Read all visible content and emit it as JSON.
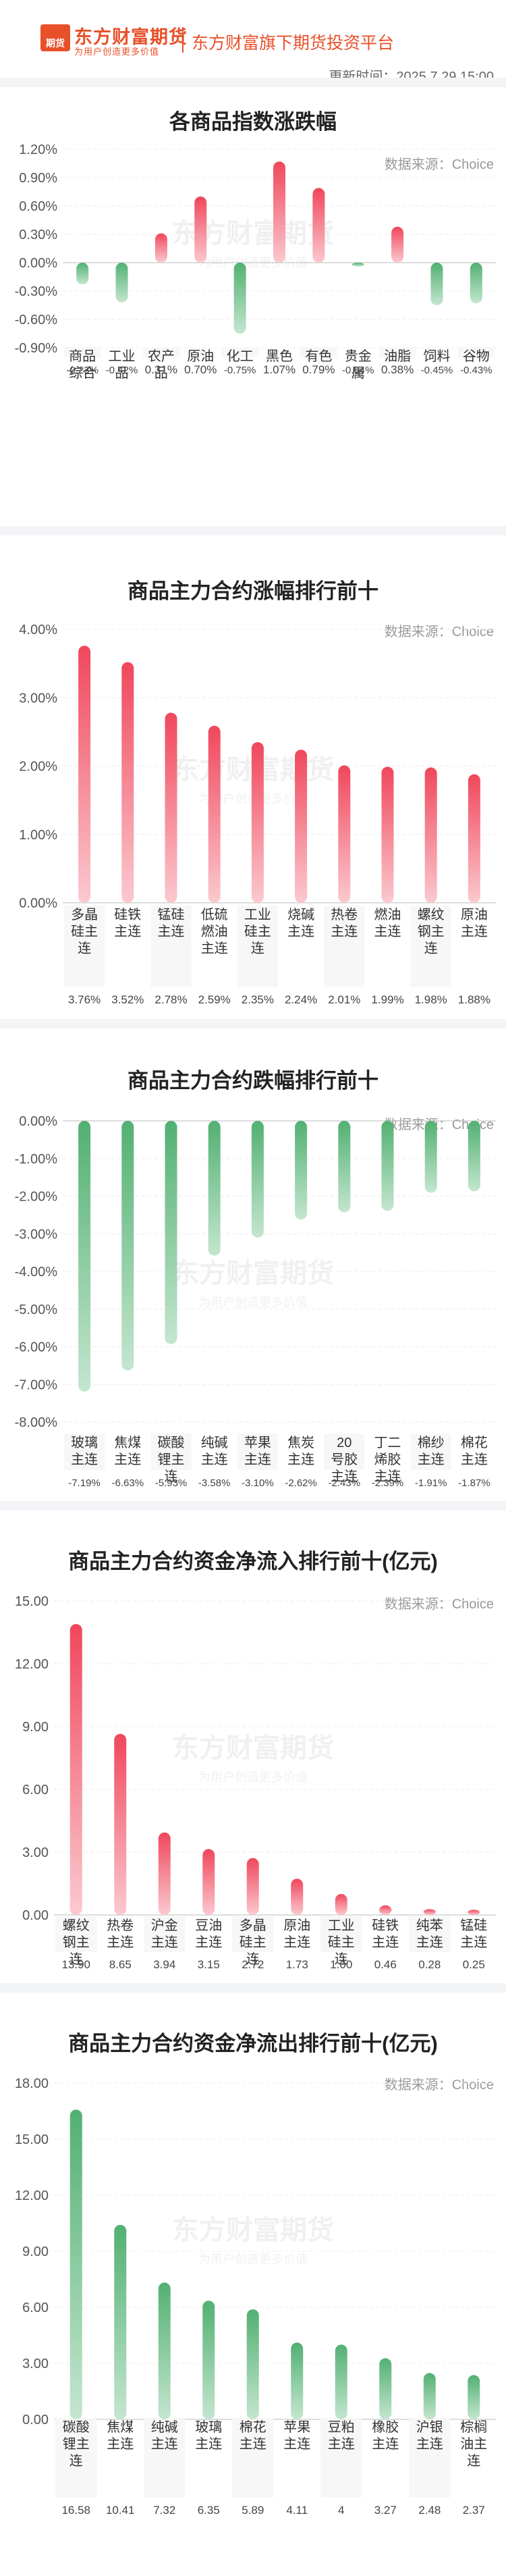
{
  "header": {
    "logo_badge": "期货",
    "logo_name": "东方财富期货",
    "logo_slogan": "为用户创造更多价值",
    "subtitle": "东方财富旗下期货投资平台",
    "update_time": "更新时间：2025.7.29 15:00"
  },
  "watermark": {
    "name": "东方财富期货",
    "slogan": "为用户创造更多价值"
  },
  "colors": {
    "up": "#f0475c",
    "down": "#52b072",
    "up_light": "#fbc9cf",
    "down_light": "#c4e6cf"
  },
  "chart_data": [
    {
      "type": "bar",
      "title": "各商品指数涨跌幅",
      "source": "数据来源：Choice",
      "categories": [
        "商品综合",
        "工业品",
        "农产品",
        "原油",
        "化工",
        "黑色",
        "有色",
        "贵金属",
        "油脂",
        "饲料",
        "谷物"
      ],
      "values": [
        -0.23,
        -0.42,
        0.31,
        0.7,
        -0.75,
        1.07,
        0.79,
        -0.04,
        0.38,
        -0.45,
        -0.43
      ],
      "value_labels": [
        "-0.23%",
        "-0.42%",
        "0.31%",
        "0.70%",
        "-0.75%",
        "1.07%",
        "0.79%",
        "-0.04%",
        "0.38%",
        "-0.45%",
        "-0.43%"
      ],
      "yticks": [
        "1.20%",
        "0.90%",
        "0.60%",
        "0.30%",
        "0.00%",
        "-0.30%",
        "-0.60%",
        "-0.90%"
      ],
      "ylim": [
        -0.9,
        1.2
      ],
      "grid": true
    },
    {
      "type": "bar",
      "title": "商品主力合约涨幅排行前十",
      "source": "数据来源：Choice",
      "categories": [
        "多晶硅主连",
        "硅铁主连",
        "锰硅主连",
        "低硫燃油主连",
        "工业硅主连",
        "烧碱主连",
        "热卷主连",
        "燃油主连",
        "螺纹钢主连",
        "原油主连"
      ],
      "values": [
        3.76,
        3.52,
        2.78,
        2.59,
        2.35,
        2.24,
        2.01,
        1.99,
        1.98,
        1.88
      ],
      "value_labels": [
        "3.76%",
        "3.52%",
        "2.78%",
        "2.59%",
        "2.35%",
        "2.24%",
        "2.01%",
        "1.99%",
        "1.98%",
        "1.88%"
      ],
      "yticks": [
        "4.00%",
        "3.00%",
        "2.00%",
        "1.00%",
        "0.00%"
      ],
      "ylim": [
        0,
        4
      ],
      "grid": true
    },
    {
      "type": "bar",
      "title": "商品主力合约跌幅排行前十",
      "source": "数据来源：Choice",
      "categories": [
        "玻璃主连",
        "焦煤主连",
        "碳酸锂主连",
        "纯碱主连",
        "苹果主连",
        "焦炭主连",
        "20号胶主连",
        "丁二烯胶主连",
        "棉纱主连",
        "棉花主连"
      ],
      "values": [
        -7.19,
        -6.63,
        -5.93,
        -3.58,
        -3.1,
        -2.62,
        -2.43,
        -2.39,
        -1.91,
        -1.87
      ],
      "value_labels": [
        "-7.19%",
        "-6.63%",
        "-5.93%",
        "-3.58%",
        "-3.10%",
        "-2.62%",
        "-2.43%",
        "-2.39%",
        "-1.91%",
        "-1.87%"
      ],
      "yticks": [
        "0.00%",
        "-1.00%",
        "-2.00%",
        "-3.00%",
        "-4.00%",
        "-5.00%",
        "-6.00%",
        "-7.00%",
        "-8.00%"
      ],
      "ylim": [
        -8,
        0
      ],
      "grid": true
    },
    {
      "type": "bar",
      "title": "商品主力合约资金净流入排行前十(亿元)",
      "source": "数据来源：Choice",
      "categories": [
        "螺纹钢主连",
        "热卷主连",
        "沪金主连",
        "豆油主连",
        "多晶硅主连",
        "原油主连",
        "工业硅主连",
        "硅铁主连",
        "纯苯主连",
        "锰硅主连"
      ],
      "values": [
        13.9,
        8.65,
        3.94,
        3.15,
        2.72,
        1.73,
        1.0,
        0.46,
        0.28,
        0.25
      ],
      "value_labels": [
        "13.90",
        "8.65",
        "3.94",
        "3.15",
        "2.72",
        "1.73",
        "1.00",
        "0.46",
        "0.28",
        "0.25"
      ],
      "yticks": [
        "15.00",
        "12.00",
        "9.00",
        "6.00",
        "3.00",
        "0.00"
      ],
      "ylim": [
        0,
        15
      ],
      "grid": true
    },
    {
      "type": "bar",
      "title": "商品主力合约资金净流出排行前十(亿元)",
      "source": "数据来源：Choice",
      "categories": [
        "碳酸锂主连",
        "焦煤主连",
        "纯碱主连",
        "玻璃主连",
        "棉花主连",
        "苹果主连",
        "豆粕主连",
        "橡胶主连",
        "沪银主连",
        "棕榈油主连"
      ],
      "values": [
        16.58,
        10.41,
        7.32,
        6.35,
        5.89,
        4.11,
        4,
        3.27,
        2.48,
        2.37
      ],
      "value_labels": [
        "16.58",
        "10.41",
        "7.32",
        "6.35",
        "5.89",
        "4.11",
        "4",
        "3.27",
        "2.48",
        "2.37"
      ],
      "yticks": [
        "18.00",
        "15.00",
        "12.00",
        "9.00",
        "6.00",
        "3.00",
        "0.00"
      ],
      "ylim": [
        0,
        18
      ],
      "grid": true
    }
  ]
}
